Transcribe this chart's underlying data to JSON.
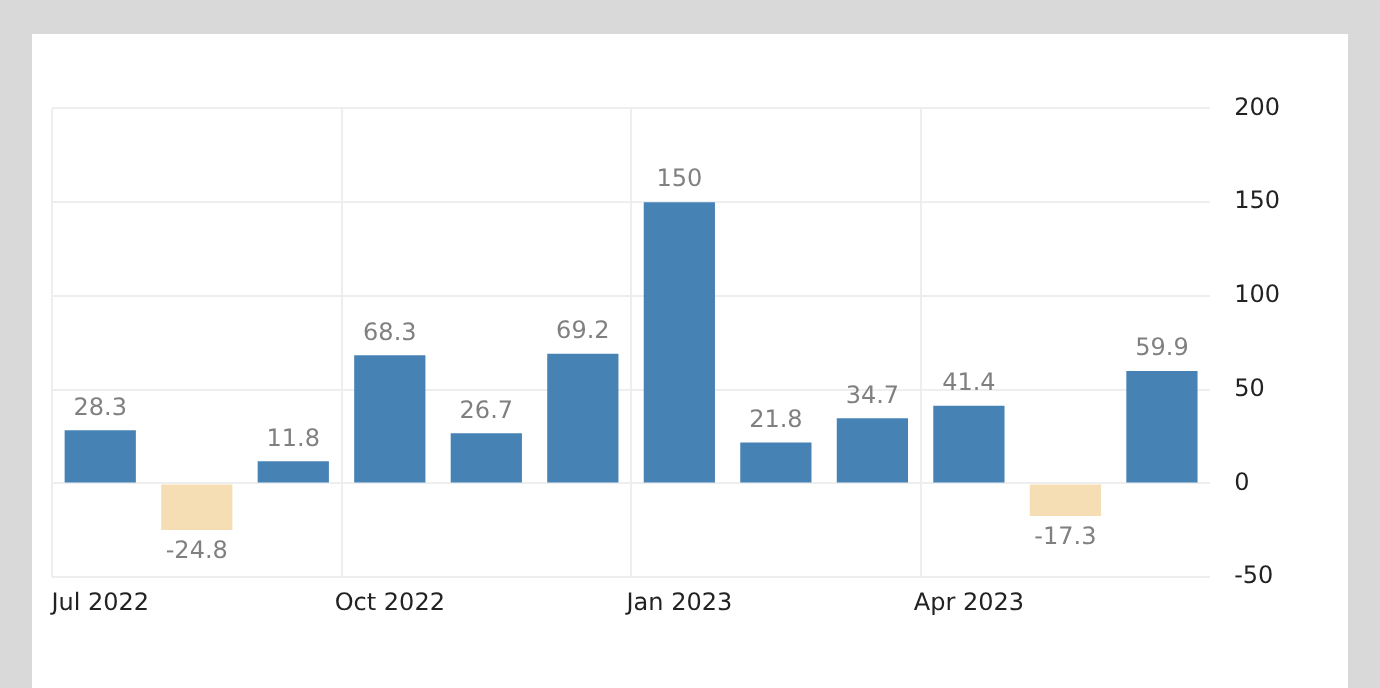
{
  "chart_data": {
    "type": "bar",
    "categories": [
      "Jul 2022",
      null,
      null,
      "Oct 2022",
      null,
      null,
      "Jan 2023",
      null,
      null,
      "Apr 2023",
      null,
      null
    ],
    "values": [
      28.3,
      -24.8,
      11.8,
      68.3,
      26.7,
      69.2,
      150,
      21.8,
      34.7,
      41.4,
      -17.3,
      59.9
    ],
    "colors": [
      "#4682b4",
      "#f5deb3",
      "#4682b4",
      "#4682b4",
      "#4682b4",
      "#4682b4",
      "#4682b4",
      "#4682b4",
      "#4682b4",
      "#4682b4",
      "#f5deb3",
      "#4682b4"
    ],
    "ylim": [
      -50,
      200
    ],
    "yticks": [
      -50,
      0,
      50,
      100,
      150,
      200
    ],
    "grid": true,
    "data_labels": true,
    "legend": false
  }
}
